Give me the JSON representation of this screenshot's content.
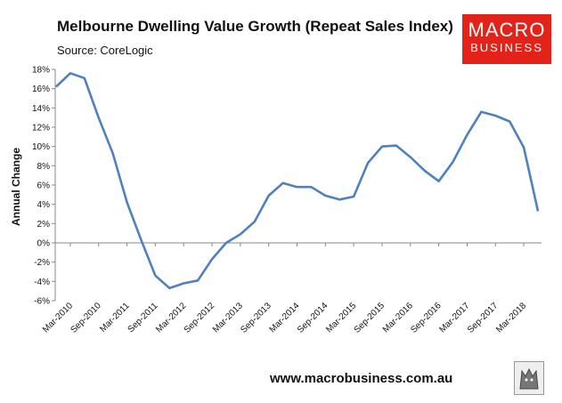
{
  "header": {
    "title": "Melbourne Dwelling Value Growth (Repeat Sales Index)",
    "source": "Source: CoreLogic"
  },
  "logo": {
    "line1": "MACRO",
    "line2": "BUSINESS",
    "color": "#e2231a"
  },
  "footer": {
    "url": "www.macrobusiness.com.au"
  },
  "chart_data": {
    "type": "line",
    "title": "Melbourne Dwelling Value Growth (Repeat Sales Index)",
    "xlabel": "",
    "ylabel": "Annual Change",
    "ylim": [
      -6,
      18
    ],
    "yticks": [
      "-6%",
      "-4%",
      "-2%",
      "0%",
      "2%",
      "4%",
      "6%",
      "8%",
      "10%",
      "12%",
      "14%",
      "16%",
      "18%"
    ],
    "xticks": [
      "Mar-2010",
      "Sep-2010",
      "Mar-2011",
      "Sep-2011",
      "Mar-2012",
      "Sep-2012",
      "Mar-2013",
      "Sep-2013",
      "Mar-2014",
      "Sep-2014",
      "Mar-2015",
      "Sep-2015",
      "Mar-2016",
      "Sep-2016",
      "Mar-2017",
      "Sep-2017",
      "Mar-2018"
    ],
    "grid": false,
    "line_color": "#4f81bd",
    "series": [
      {
        "x": [
          "Dec-2009",
          "Mar-2010",
          "Jun-2010",
          "Sep-2010",
          "Dec-2010",
          "Mar-2011",
          "Jun-2011",
          "Sep-2011",
          "Dec-2011",
          "Mar-2012",
          "Jun-2012",
          "Sep-2012",
          "Dec-2012",
          "Mar-2013",
          "Jun-2013",
          "Sep-2013",
          "Dec-2013",
          "Mar-2014",
          "Jun-2014",
          "Sep-2014",
          "Dec-2014",
          "Mar-2015",
          "Jun-2015",
          "Sep-2015",
          "Dec-2015",
          "Mar-2016",
          "Jun-2016",
          "Sep-2016",
          "Dec-2016",
          "Mar-2017",
          "Jun-2017",
          "Sep-2017",
          "Dec-2017",
          "Mar-2018",
          "Jun-2018"
        ],
        "values": [
          16.2,
          17.6,
          17.1,
          13.0,
          9.3,
          4.2,
          0.3,
          -3.4,
          -4.7,
          -4.2,
          -3.9,
          -1.7,
          0.0,
          0.9,
          2.2,
          4.9,
          6.2,
          5.8,
          5.8,
          4.9,
          4.5,
          4.8,
          8.3,
          10.0,
          10.1,
          8.9,
          7.5,
          6.4,
          8.4,
          11.2,
          13.6,
          13.2,
          12.6,
          9.9,
          3.3
        ]
      }
    ]
  }
}
